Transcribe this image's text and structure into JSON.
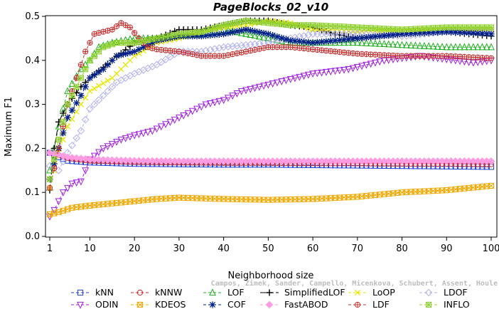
{
  "chart_data": {
    "type": "line",
    "title": "PageBlocks_02_v10",
    "xlabel": "Neighborhood size",
    "ylabel": "Maximum F1",
    "xlim": [
      1,
      100
    ],
    "ylim": [
      0,
      0.5
    ],
    "x_ticks": [
      1,
      10,
      20,
      30,
      40,
      50,
      60,
      70,
      80,
      90,
      100
    ],
    "y_ticks": [
      "0.0",
      "0.1",
      "0.2",
      "0.3",
      "0.4",
      "0.5"
    ],
    "grid": false,
    "legend_position": "bottom",
    "series": [
      {
        "name": "kNN",
        "color": "#1f3fd6",
        "marker": "square",
        "dash": "4,3",
        "points": [
          [
            1,
            0.19
          ],
          [
            3,
            0.18
          ],
          [
            5,
            0.172
          ],
          [
            10,
            0.168
          ],
          [
            20,
            0.165
          ],
          [
            30,
            0.164
          ],
          [
            40,
            0.163
          ],
          [
            50,
            0.163
          ],
          [
            60,
            0.162
          ],
          [
            70,
            0.161
          ],
          [
            80,
            0.16
          ],
          [
            90,
            0.159
          ],
          [
            100,
            0.158
          ]
        ]
      },
      {
        "name": "kNNW",
        "color": "#d62020",
        "marker": "circle",
        "dash": "4,3",
        "points": [
          [
            1,
            0.19
          ],
          [
            3,
            0.185
          ],
          [
            5,
            0.178
          ],
          [
            10,
            0.172
          ],
          [
            20,
            0.169
          ],
          [
            30,
            0.168
          ],
          [
            40,
            0.167
          ],
          [
            50,
            0.167
          ],
          [
            60,
            0.166
          ],
          [
            70,
            0.166
          ],
          [
            80,
            0.165
          ],
          [
            90,
            0.165
          ],
          [
            100,
            0.164
          ]
        ]
      },
      {
        "name": "LOF",
        "color": "#20b020",
        "marker": "triangle",
        "dash": "4,3",
        "points": [
          [
            1,
            0.15
          ],
          [
            3,
            0.25
          ],
          [
            5,
            0.33
          ],
          [
            8,
            0.38
          ],
          [
            10,
            0.4
          ],
          [
            12,
            0.43
          ],
          [
            15,
            0.44
          ],
          [
            20,
            0.45
          ],
          [
            25,
            0.45
          ],
          [
            30,
            0.455
          ],
          [
            35,
            0.46
          ],
          [
            40,
            0.47
          ],
          [
            45,
            0.46
          ],
          [
            50,
            0.45
          ],
          [
            55,
            0.44
          ],
          [
            60,
            0.44
          ],
          [
            70,
            0.44
          ],
          [
            80,
            0.435
          ],
          [
            90,
            0.43
          ],
          [
            100,
            0.43
          ]
        ]
      },
      {
        "name": "SimplifiedLOF",
        "color": "#000000",
        "marker": "plus",
        "dash": "8,3",
        "points": [
          [
            1,
            0.105
          ],
          [
            2,
            0.2
          ],
          [
            3,
            0.26
          ],
          [
            5,
            0.3
          ],
          [
            8,
            0.34
          ],
          [
            10,
            0.36
          ],
          [
            15,
            0.4
          ],
          [
            20,
            0.44
          ],
          [
            25,
            0.45
          ],
          [
            30,
            0.47
          ],
          [
            35,
            0.47
          ],
          [
            40,
            0.48
          ],
          [
            45,
            0.49
          ],
          [
            50,
            0.49
          ],
          [
            55,
            0.48
          ],
          [
            60,
            0.475
          ],
          [
            65,
            0.46
          ],
          [
            70,
            0.45
          ],
          [
            80,
            0.46
          ],
          [
            90,
            0.465
          ],
          [
            100,
            0.455
          ]
        ]
      },
      {
        "name": "LoOP",
        "color": "#e6e600",
        "marker": "cross",
        "dash": "4,3",
        "points": [
          [
            1,
            0.11
          ],
          [
            3,
            0.19
          ],
          [
            5,
            0.25
          ],
          [
            8,
            0.3
          ],
          [
            10,
            0.33
          ],
          [
            15,
            0.36
          ],
          [
            20,
            0.41
          ],
          [
            25,
            0.44
          ],
          [
            30,
            0.45
          ],
          [
            35,
            0.465
          ],
          [
            40,
            0.475
          ],
          [
            45,
            0.48
          ],
          [
            50,
            0.49
          ],
          [
            55,
            0.485
          ],
          [
            60,
            0.47
          ],
          [
            70,
            0.465
          ],
          [
            80,
            0.47
          ],
          [
            90,
            0.47
          ],
          [
            100,
            0.47
          ]
        ]
      },
      {
        "name": "LDOF",
        "color": "#b0b0ee",
        "marker": "diamond",
        "dash": "4,3",
        "points": [
          [
            1,
            0.16
          ],
          [
            3,
            0.15
          ],
          [
            5,
            0.19
          ],
          [
            8,
            0.24
          ],
          [
            10,
            0.29
          ],
          [
            13,
            0.32
          ],
          [
            16,
            0.35
          ],
          [
            20,
            0.37
          ],
          [
            25,
            0.39
          ],
          [
            30,
            0.42
          ],
          [
            35,
            0.42
          ],
          [
            40,
            0.43
          ],
          [
            50,
            0.44
          ],
          [
            60,
            0.46
          ],
          [
            70,
            0.46
          ],
          [
            80,
            0.455
          ],
          [
            90,
            0.465
          ],
          [
            100,
            0.465
          ]
        ]
      },
      {
        "name": "ODIN",
        "color": "#a020e0",
        "marker": "triangle-down",
        "dash": "4,3",
        "points": [
          [
            1,
            0.045
          ],
          [
            2,
            0.06
          ],
          [
            4,
            0.1
          ],
          [
            6,
            0.12
          ],
          [
            8,
            0.125
          ],
          [
            10,
            0.175
          ],
          [
            13,
            0.2
          ],
          [
            17,
            0.22
          ],
          [
            20,
            0.23
          ],
          [
            24,
            0.24
          ],
          [
            28,
            0.26
          ],
          [
            32,
            0.28
          ],
          [
            36,
            0.3
          ],
          [
            40,
            0.31
          ],
          [
            44,
            0.33
          ],
          [
            48,
            0.34
          ],
          [
            52,
            0.35
          ],
          [
            56,
            0.36
          ],
          [
            60,
            0.37
          ],
          [
            64,
            0.375
          ],
          [
            68,
            0.38
          ],
          [
            72,
            0.39
          ],
          [
            76,
            0.4
          ],
          [
            80,
            0.405
          ],
          [
            84,
            0.41
          ],
          [
            88,
            0.405
          ],
          [
            92,
            0.4
          ],
          [
            96,
            0.395
          ],
          [
            100,
            0.4
          ]
        ]
      },
      {
        "name": "KDEOS",
        "color": "#f0a800",
        "marker": "square-x",
        "dash": "4,3",
        "points": [
          [
            1,
            0.05
          ],
          [
            3,
            0.055
          ],
          [
            6,
            0.065
          ],
          [
            10,
            0.07
          ],
          [
            15,
            0.075
          ],
          [
            20,
            0.08
          ],
          [
            25,
            0.085
          ],
          [
            30,
            0.088
          ],
          [
            40,
            0.085
          ],
          [
            50,
            0.083
          ],
          [
            60,
            0.085
          ],
          [
            70,
            0.09
          ],
          [
            80,
            0.1
          ],
          [
            90,
            0.105
          ],
          [
            100,
            0.115
          ]
        ]
      },
      {
        "name": "COF",
        "color": "#00208a",
        "marker": "asterisk",
        "dash": "4,3",
        "points": [
          [
            1,
            0.13
          ],
          [
            3,
            0.2
          ],
          [
            5,
            0.27
          ],
          [
            8,
            0.32
          ],
          [
            10,
            0.36
          ],
          [
            13,
            0.38
          ],
          [
            16,
            0.41
          ],
          [
            20,
            0.42
          ],
          [
            25,
            0.445
          ],
          [
            30,
            0.455
          ],
          [
            35,
            0.455
          ],
          [
            40,
            0.46
          ],
          [
            45,
            0.47
          ],
          [
            50,
            0.46
          ],
          [
            55,
            0.445
          ],
          [
            60,
            0.44
          ],
          [
            65,
            0.445
          ],
          [
            70,
            0.45
          ],
          [
            80,
            0.46
          ],
          [
            90,
            0.465
          ],
          [
            100,
            0.46
          ]
        ]
      },
      {
        "name": "FastABOD",
        "color": "#ff9be0",
        "marker": "diamond-fill",
        "dash": "4,3",
        "points": [
          [
            1,
            0.19
          ],
          [
            3,
            0.185
          ],
          [
            5,
            0.18
          ],
          [
            10,
            0.175
          ],
          [
            20,
            0.172
          ],
          [
            30,
            0.171
          ],
          [
            40,
            0.171
          ],
          [
            50,
            0.171
          ],
          [
            60,
            0.171
          ],
          [
            70,
            0.171
          ],
          [
            80,
            0.171
          ],
          [
            90,
            0.171
          ],
          [
            100,
            0.171
          ]
        ]
      },
      {
        "name": "LDF",
        "color": "#c83030",
        "marker": "circle-plus",
        "dash": "4,3",
        "points": [
          [
            1,
            0.11
          ],
          [
            3,
            0.2
          ],
          [
            5,
            0.3
          ],
          [
            7,
            0.36
          ],
          [
            9,
            0.42
          ],
          [
            11,
            0.46
          ],
          [
            13,
            0.465
          ],
          [
            15,
            0.47
          ],
          [
            17,
            0.485
          ],
          [
            19,
            0.475
          ],
          [
            21,
            0.45
          ],
          [
            23,
            0.43
          ],
          [
            25,
            0.425
          ],
          [
            30,
            0.42
          ],
          [
            35,
            0.41
          ],
          [
            40,
            0.41
          ],
          [
            45,
            0.42
          ],
          [
            50,
            0.43
          ],
          [
            55,
            0.43
          ],
          [
            60,
            0.425
          ],
          [
            70,
            0.415
          ],
          [
            80,
            0.41
          ],
          [
            90,
            0.41
          ],
          [
            100,
            0.405
          ]
        ]
      },
      {
        "name": "INFLO",
        "color": "#90d030",
        "marker": "square-star",
        "dash": "4,3",
        "points": [
          [
            1,
            0.13
          ],
          [
            3,
            0.22
          ],
          [
            5,
            0.3
          ],
          [
            8,
            0.36
          ],
          [
            10,
            0.4
          ],
          [
            13,
            0.43
          ],
          [
            16,
            0.44
          ],
          [
            20,
            0.44
          ],
          [
            25,
            0.45
          ],
          [
            30,
            0.46
          ],
          [
            35,
            0.465
          ],
          [
            40,
            0.48
          ],
          [
            45,
            0.49
          ],
          [
            50,
            0.485
          ],
          [
            55,
            0.48
          ],
          [
            60,
            0.48
          ],
          [
            70,
            0.475
          ],
          [
            80,
            0.47
          ],
          [
            90,
            0.475
          ],
          [
            100,
            0.475
          ]
        ]
      }
    ],
    "watermark": "Campos, Zimek, Sander, Campello, Micenkova, Schubert, Assent, Houle"
  }
}
